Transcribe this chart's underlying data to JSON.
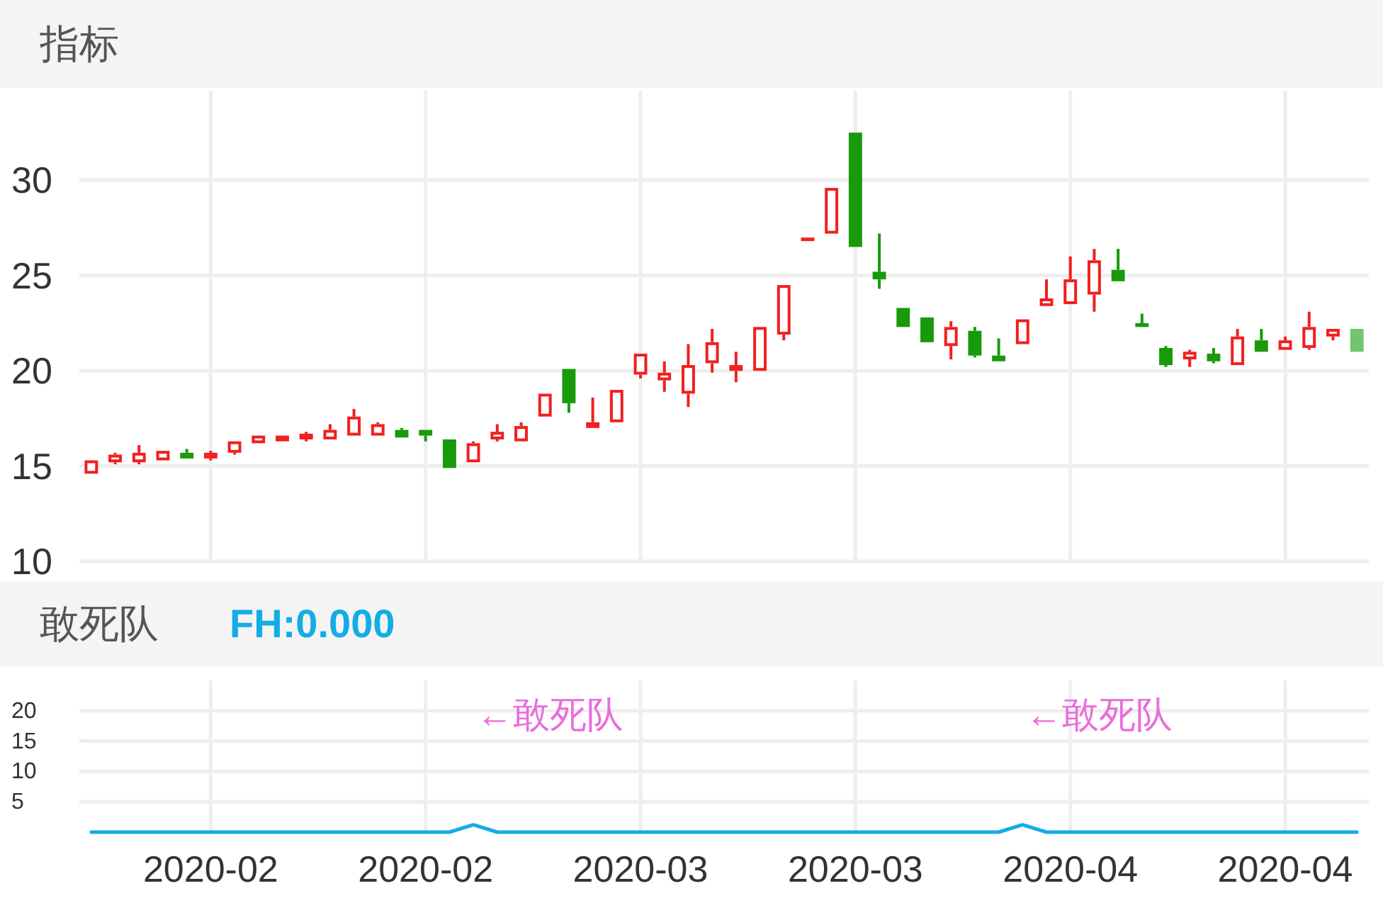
{
  "chart_data": [
    {
      "type": "candlestick",
      "title": "指标",
      "categories": [
        null,
        null,
        null,
        null,
        null,
        "2020-02",
        null,
        null,
        null,
        null,
        null,
        null,
        null,
        null,
        "2020-02",
        null,
        null,
        null,
        null,
        null,
        null,
        null,
        null,
        "2020-03",
        null,
        null,
        null,
        null,
        null,
        null,
        null,
        null,
        "2020-03",
        null,
        null,
        null,
        null,
        null,
        null,
        null,
        null,
        "2020-04",
        null,
        null,
        null,
        null,
        null,
        null,
        null,
        null,
        "2020-04",
        null,
        null,
        null
      ],
      "ohlc": [
        [
          14.6,
          15.3,
          14.6,
          15.3
        ],
        [
          15.2,
          15.7,
          15.1,
          15.6
        ],
        [
          15.2,
          16.1,
          15.1,
          15.7
        ],
        [
          15.3,
          15.8,
          15.3,
          15.8
        ],
        [
          15.7,
          15.9,
          15.4,
          15.4
        ],
        [
          15.4,
          15.8,
          15.3,
          15.7
        ],
        [
          15.7,
          16.3,
          15.6,
          16.3
        ],
        [
          16.2,
          16.6,
          16.2,
          16.6
        ],
        [
          16.3,
          16.6,
          16.3,
          16.6
        ],
        [
          16.4,
          16.8,
          16.3,
          16.7
        ],
        [
          16.4,
          17.2,
          16.4,
          16.9
        ],
        [
          16.6,
          18.0,
          16.6,
          17.6
        ],
        [
          16.6,
          17.3,
          16.6,
          17.2
        ],
        [
          16.9,
          17.0,
          16.5,
          16.5
        ],
        [
          16.9,
          16.9,
          16.3,
          16.6
        ],
        [
          16.4,
          16.4,
          14.9,
          14.9
        ],
        [
          15.2,
          16.3,
          15.2,
          16.2
        ],
        [
          16.4,
          17.2,
          16.3,
          16.8
        ],
        [
          16.3,
          17.3,
          16.3,
          17.1
        ],
        [
          17.6,
          18.8,
          17.6,
          18.8
        ],
        [
          20.1,
          20.1,
          17.8,
          18.3
        ],
        [
          17.0,
          18.6,
          17.0,
          17.3
        ],
        [
          17.3,
          19.0,
          17.3,
          19.0
        ],
        [
          19.8,
          20.9,
          19.6,
          20.9
        ],
        [
          19.5,
          20.5,
          18.9,
          19.9
        ],
        [
          18.8,
          21.4,
          18.1,
          20.3
        ],
        [
          20.4,
          22.2,
          19.9,
          21.5
        ],
        [
          20.0,
          21.0,
          19.4,
          20.3
        ],
        [
          20.0,
          22.3,
          20.0,
          22.3
        ],
        [
          21.9,
          24.5,
          21.6,
          24.5
        ],
        [
          26.9,
          26.9,
          26.9,
          26.9
        ],
        [
          27.2,
          29.6,
          27.2,
          29.6
        ],
        [
          32.5,
          32.5,
          26.5,
          26.5
        ],
        [
          25.2,
          27.2,
          24.3,
          24.8
        ],
        [
          23.3,
          23.3,
          22.3,
          22.3
        ],
        [
          22.8,
          22.8,
          21.5,
          21.5
        ],
        [
          21.3,
          22.6,
          20.6,
          22.3
        ],
        [
          22.1,
          22.3,
          20.7,
          20.8
        ],
        [
          20.8,
          21.7,
          20.5,
          20.5
        ],
        [
          21.4,
          22.7,
          21.4,
          22.7
        ],
        [
          23.4,
          24.8,
          23.4,
          23.8
        ],
        [
          23.5,
          26.0,
          23.5,
          24.8
        ],
        [
          24.0,
          26.4,
          23.1,
          25.8
        ],
        [
          25.3,
          26.4,
          24.7,
          24.7
        ],
        [
          22.5,
          23.0,
          22.3,
          22.3
        ],
        [
          21.2,
          21.3,
          20.2,
          20.3
        ],
        [
          20.6,
          21.1,
          20.2,
          21.0
        ],
        [
          20.9,
          21.2,
          20.4,
          20.5
        ],
        [
          20.3,
          22.2,
          20.3,
          21.8
        ],
        [
          21.6,
          22.2,
          21.0,
          21.0
        ],
        [
          21.1,
          21.8,
          21.1,
          21.6
        ],
        [
          21.2,
          23.1,
          21.1,
          22.3
        ],
        [
          21.8,
          22.2,
          21.6,
          22.2
        ],
        [
          22.2,
          22.2,
          21.0,
          21.0
        ]
      ],
      "colors": [
        "#f0201e",
        "#f0201e",
        "#f0201e",
        "#f0201e",
        "#189a0a",
        "#f0201e",
        "#f0201e",
        "#f0201e",
        "#f0201e",
        "#f0201e",
        "#f0201e",
        "#f0201e",
        "#f0201e",
        "#189a0a",
        "#189a0a",
        "#189a0a",
        "#f0201e",
        "#f0201e",
        "#f0201e",
        "#f0201e",
        "#189a0a",
        "#f0201e",
        "#f0201e",
        "#f0201e",
        "#f0201e",
        "#f0201e",
        "#f0201e",
        "#f0201e",
        "#f0201e",
        "#f0201e",
        "#f0201e",
        "#f0201e",
        "#189a0a",
        "#189a0a",
        "#189a0a",
        "#189a0a",
        "#f0201e",
        "#189a0a",
        "#189a0a",
        "#f0201e",
        "#f0201e",
        "#f0201e",
        "#f0201e",
        "#189a0a",
        "#189a0a",
        "#189a0a",
        "#f0201e",
        "#189a0a",
        "#f0201e",
        "#189a0a",
        "#f0201e",
        "#f0201e",
        "#f0201e",
        "#72c46e"
      ],
      "ylim": [
        10,
        34.7
      ],
      "yticks": [
        10,
        15,
        20,
        25,
        30
      ],
      "grid": true,
      "tick_labels": "y"
    },
    {
      "type": "line",
      "title": "敢死队",
      "categories": [
        null,
        null,
        null,
        null,
        null,
        "2020-02",
        null,
        null,
        null,
        null,
        null,
        null,
        null,
        null,
        "2020-02",
        null,
        null,
        null,
        null,
        null,
        null,
        null,
        null,
        "2020-03",
        null,
        null,
        null,
        null,
        null,
        null,
        null,
        null,
        "2020-03",
        null,
        null,
        null,
        null,
        null,
        null,
        null,
        null,
        "2020-04",
        null,
        null,
        null,
        null,
        null,
        null,
        null,
        null,
        "2020-04",
        null,
        null,
        null
      ],
      "series": [
        {
          "name": "FH:0.000",
          "color": "#12ade6",
          "values": [
            0,
            0,
            0,
            0,
            0,
            0,
            0,
            0,
            0,
            0,
            0,
            0,
            0,
            0,
            0,
            0,
            1.2,
            0,
            0,
            0,
            0,
            0,
            0,
            0,
            0,
            0,
            0,
            0,
            0,
            0,
            0,
            0,
            0,
            0,
            0,
            0,
            0,
            0,
            0,
            1.2,
            0,
            0,
            0,
            0,
            0,
            0,
            0,
            0,
            0,
            0,
            0,
            0,
            0,
            0
          ]
        }
      ],
      "ylim": [
        0,
        25
      ],
      "yticks": [
        5,
        10,
        15,
        20
      ],
      "grid": true,
      "legend": "top left",
      "annotations": [
        "←敢死队",
        "←敢死队"
      ]
    }
  ]
}
